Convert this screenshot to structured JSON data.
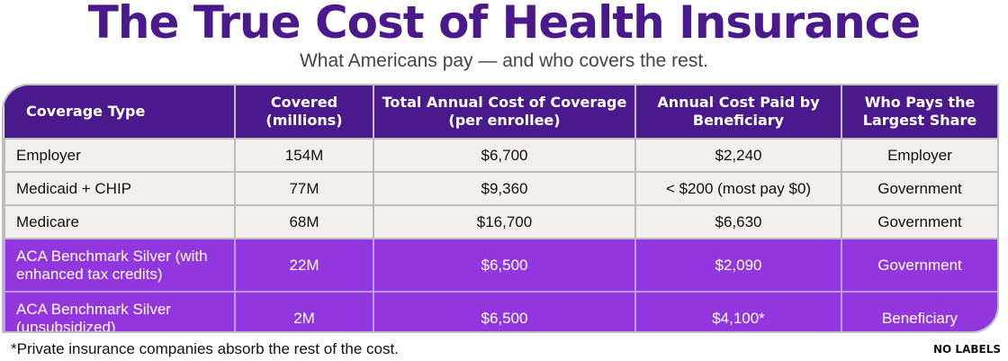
{
  "title": "The True Cost of Health Insurance",
  "subtitle": "What Americans pay — and who covers the rest.",
  "table": {
    "headers": [
      "Coverage Type",
      "Covered (millions)",
      "Total Annual Cost of Coverage (per enrollee)",
      "Annual Cost Paid by Beneficiary",
      "Who Pays the Largest Share"
    ],
    "rows": [
      [
        "Employer",
        "154M",
        "$6,700",
        "$2,240",
        "Employer"
      ],
      [
        "Medicaid + CHIP",
        "77M",
        "$9,360",
        "< $200 (most pay $0)",
        "Government"
      ],
      [
        "Medicare",
        "68M",
        "$16,700",
        "$6,630",
        "Government"
      ],
      [
        "ACA Benchmark Silver (with enhanced tax credits)",
        "22M",
        "$6,500",
        "$2,090",
        "Government"
      ],
      [
        "ACA Benchmark Silver (unsubsidized)",
        "2M",
        "$6,500",
        "$4,100*",
        "Beneficiary"
      ]
    ]
  },
  "footnote": "*Private insurance companies absorb the rest of the cost.",
  "logo": "NO LABELS",
  "colors": {
    "header": "#4a1a8c",
    "highlight": "#9237e0",
    "row": "#f3efec"
  }
}
